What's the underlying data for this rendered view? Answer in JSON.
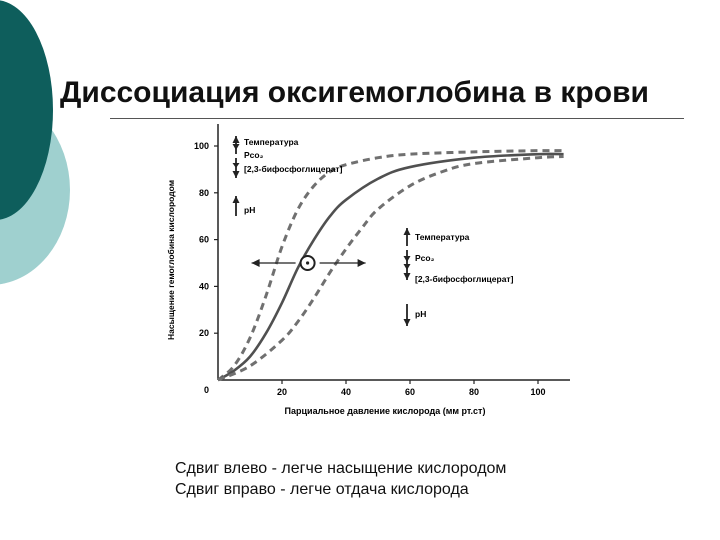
{
  "slide": {
    "title": "Диссоциация оксигемоглобина в крови",
    "caption_lines": [
      "Сдвиг влево - легче насыщение кислородом",
      "Сдвиг вправо - легче отдача кислорода"
    ]
  },
  "colors": {
    "deco_dark": "#0e5e5c",
    "deco_light": "#9fd0cf",
    "curve": "#505050",
    "dashed": "#707070"
  },
  "chart_data": {
    "type": "line",
    "title": "",
    "xlabel": "Парциальное давление кислорода (мм рт.ст)",
    "ylabel": "Насыщение гемоглобина кислородом",
    "xlim": [
      0,
      110
    ],
    "ylim": [
      0,
      100
    ],
    "x_ticks": [
      20,
      40,
      60,
      80,
      100
    ],
    "y_ticks": [
      20,
      40,
      60,
      80,
      100
    ],
    "origin_label": "0",
    "grid": false,
    "series": [
      {
        "style": "dashed",
        "x": [
          0,
          5,
          10,
          15,
          20,
          25,
          30,
          35,
          40,
          50,
          60,
          80,
          100,
          108
        ],
        "y": [
          0,
          6,
          18,
          36,
          57,
          73,
          83,
          89,
          92,
          95,
          96.5,
          97.5,
          98,
          98
        ]
      },
      {
        "style": "solid",
        "x": [
          0,
          5,
          10,
          15,
          20,
          25,
          30,
          35,
          40,
          50,
          60,
          80,
          100,
          108
        ],
        "y": [
          0,
          4,
          10,
          20,
          33,
          48,
          60,
          70,
          77,
          86,
          91,
          95,
          96.5,
          96.5
        ]
      },
      {
        "style": "dashed",
        "x": [
          0,
          10,
          20,
          25,
          30,
          35,
          40,
          45,
          50,
          60,
          70,
          80,
          100,
          108
        ],
        "y": [
          0,
          6,
          17,
          25,
          35,
          46,
          56,
          65,
          73,
          83,
          89,
          92.5,
          95,
          95.5
        ]
      }
    ],
    "midpoint": {
      "x": 28,
      "y": 50
    },
    "annotations": {
      "left_shift": {
        "temperature": "Температура",
        "pco2": "Pco₂",
        "dpg": "[2,3-бифосфоглицерат]",
        "ph": "pH"
      },
      "right_shift": {
        "temperature": "Температура",
        "pco2": "Pco₂",
        "dpg": "[2,3-бифосфоглицерат]",
        "ph": "pH"
      }
    }
  }
}
